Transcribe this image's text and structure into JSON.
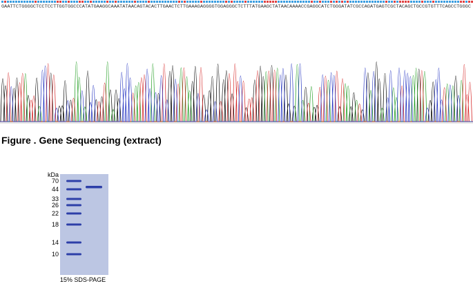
{
  "sequence": "GAATTCTGGGGCTCCTCCTTGGTGGCCCATATGAAGGCAAATATAACAGTACACTTGAACTCTTGAAAGAGGGGTGGAGGGCTCTTTATGAAGCTATAACAAAACCGAGGCATCTGGGATATCGCCAGATGAGTCGCTACAGCTGCCGTGTTTCAGCCTGGGC",
  "caption": "Figure . Gene Sequencing (extract)",
  "gel": {
    "unit": "kDa",
    "markers": [
      70,
      44,
      33,
      26,
      22,
      18,
      14,
      10
    ],
    "footer": "15% SDS-PAGE"
  }
}
